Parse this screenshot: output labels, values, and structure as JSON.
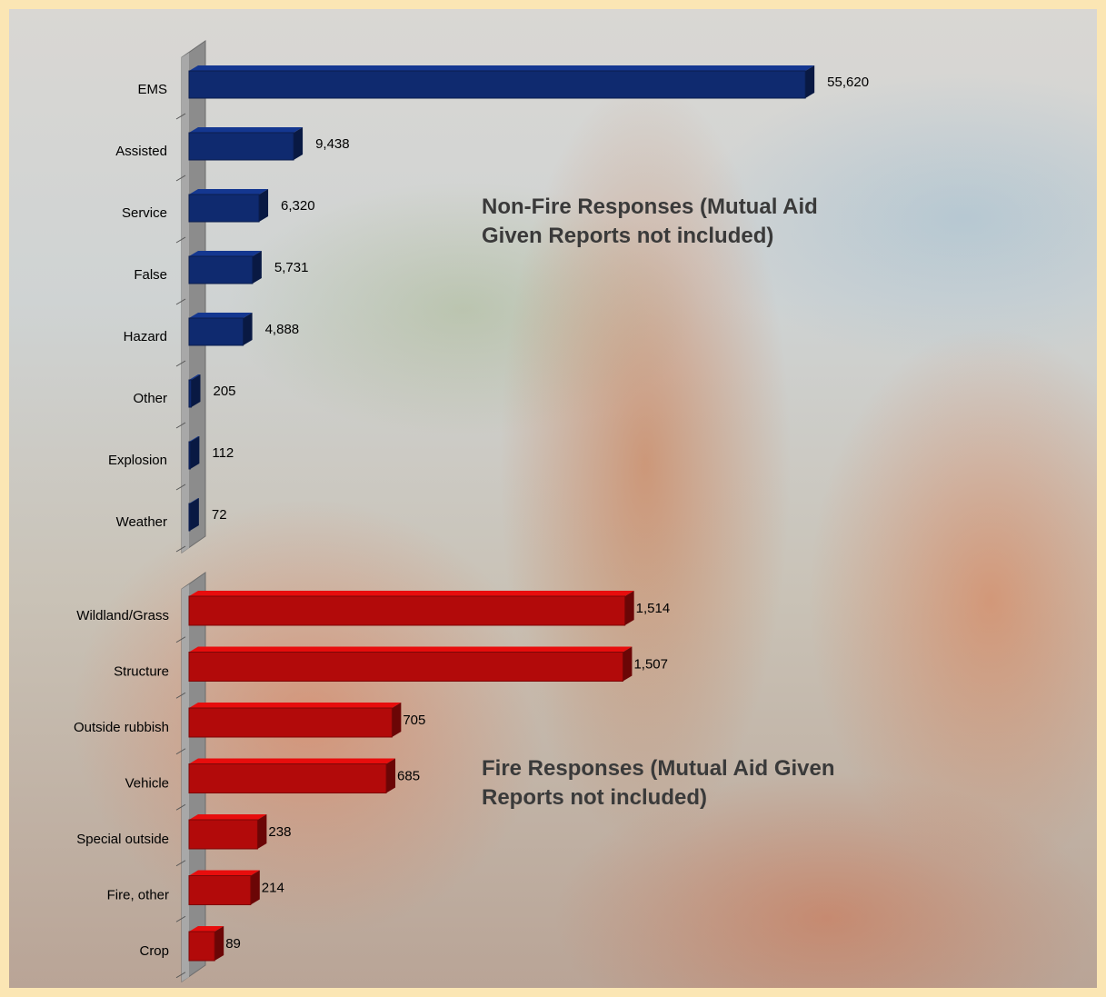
{
  "chart_data": [
    {
      "type": "bar",
      "orientation": "horizontal",
      "annotation": "Non-Fire Responses (Mutual Aid Given Reports not included)",
      "categories": [
        "EMS",
        "Assisted",
        "Service",
        "False",
        "Hazard",
        "Other",
        "Explosion",
        "Weather"
      ],
      "values": [
        55620,
        9438,
        6320,
        5731,
        4888,
        205,
        112,
        72
      ],
      "value_labels": [
        "55,620",
        "9,438",
        "6,320",
        "5,731",
        "4,888",
        "205",
        "112",
        "72"
      ],
      "color": "#0f2a6f",
      "xlim": [
        0,
        57000
      ]
    },
    {
      "type": "bar",
      "orientation": "horizontal",
      "annotation": "Fire Responses (Mutual Aid Given Reports not included)",
      "categories": [
        "Wildland/Grass",
        "Structure",
        "Outside rubbish",
        "Vehicle",
        "Special outside",
        "Fire, other",
        "Crop"
      ],
      "values": [
        1514,
        1507,
        705,
        685,
        238,
        214,
        89
      ],
      "value_labels": [
        "1,514",
        "1,507",
        "705",
        "685",
        "238",
        "214",
        "89"
      ],
      "color": "#b20a0a",
      "xlim": [
        0,
        2200
      ]
    }
  ]
}
